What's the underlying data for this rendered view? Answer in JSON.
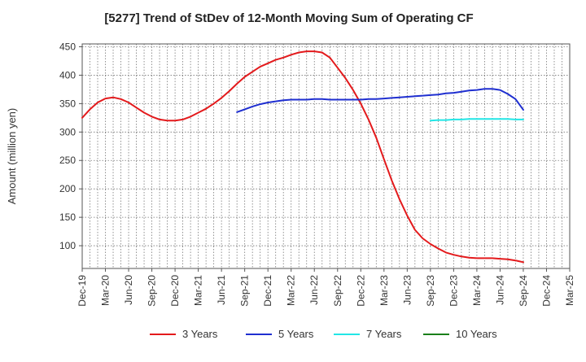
{
  "chart_data": {
    "type": "line",
    "title": "[5277]  Trend of StDev of 12-Month Moving Sum of Operating CF",
    "xlabel": "",
    "ylabel": "Amount (million yen)",
    "ylim": [
      60,
      455
    ],
    "yticks": [
      100,
      150,
      200,
      250,
      300,
      350,
      400,
      450
    ],
    "grid": true,
    "legend_position": "bottom",
    "x_ticks": [
      "Dec-19",
      "Mar-20",
      "Jun-20",
      "Sep-20",
      "Dec-20",
      "Mar-21",
      "Jun-21",
      "Sep-21",
      "Dec-21",
      "Mar-22",
      "Jun-22",
      "Sep-22",
      "Dec-22",
      "Mar-23",
      "Jun-23",
      "Sep-23",
      "Dec-23",
      "Mar-24",
      "Jun-24",
      "Sep-24",
      "Dec-24",
      "Mar-25"
    ],
    "series": [
      {
        "name": "3 Years",
        "color": "#e31a1c",
        "points": [
          [
            "Dec-19",
            325
          ],
          [
            "Jan-20",
            340
          ],
          [
            "Feb-20",
            352
          ],
          [
            "Mar-20",
            359
          ],
          [
            "Apr-20",
            361
          ],
          [
            "May-20",
            358
          ],
          [
            "Jun-20",
            352
          ],
          [
            "Jul-20",
            343
          ],
          [
            "Aug-20",
            334
          ],
          [
            "Sep-20",
            327
          ],
          [
            "Oct-20",
            322
          ],
          [
            "Nov-20",
            320
          ],
          [
            "Dec-20",
            320
          ],
          [
            "Jan-21",
            322
          ],
          [
            "Feb-21",
            327
          ],
          [
            "Mar-21",
            334
          ],
          [
            "Apr-21",
            341
          ],
          [
            "May-21",
            350
          ],
          [
            "Jun-21",
            360
          ],
          [
            "Jul-21",
            372
          ],
          [
            "Aug-21",
            385
          ],
          [
            "Sep-21",
            397
          ],
          [
            "Oct-21",
            406
          ],
          [
            "Nov-21",
            415
          ],
          [
            "Dec-21",
            421
          ],
          [
            "Jan-22",
            427
          ],
          [
            "Feb-22",
            431
          ],
          [
            "Mar-22",
            436
          ],
          [
            "Apr-22",
            440
          ],
          [
            "May-22",
            442
          ],
          [
            "Jun-22",
            442
          ],
          [
            "Jul-22",
            440
          ],
          [
            "Aug-22",
            431
          ],
          [
            "Sep-22",
            413
          ],
          [
            "Oct-22",
            395
          ],
          [
            "Nov-22",
            374
          ],
          [
            "Dec-22",
            350
          ],
          [
            "Jan-23",
            322
          ],
          [
            "Feb-23",
            290
          ],
          [
            "Mar-23",
            252
          ],
          [
            "Apr-23",
            215
          ],
          [
            "May-23",
            182
          ],
          [
            "Jun-23",
            153
          ],
          [
            "Jul-23",
            128
          ],
          [
            "Aug-23",
            113
          ],
          [
            "Sep-23",
            103
          ],
          [
            "Oct-23",
            95
          ],
          [
            "Nov-23",
            88
          ],
          [
            "Dec-23",
            84
          ],
          [
            "Jan-24",
            81
          ],
          [
            "Feb-24",
            79
          ],
          [
            "Mar-24",
            78
          ],
          [
            "Apr-24",
            78
          ],
          [
            "May-24",
            78
          ],
          [
            "Jun-24",
            77
          ],
          [
            "Jul-24",
            76
          ],
          [
            "Aug-24",
            74
          ],
          [
            "Sep-24",
            71
          ]
        ]
      },
      {
        "name": "5 Years",
        "color": "#1f2fd0",
        "points": [
          [
            "Aug-21",
            335
          ],
          [
            "Sep-21",
            340
          ],
          [
            "Oct-21",
            345
          ],
          [
            "Nov-21",
            349
          ],
          [
            "Dec-21",
            352
          ],
          [
            "Jan-22",
            354
          ],
          [
            "Feb-22",
            356
          ],
          [
            "Mar-22",
            357
          ],
          [
            "Apr-22",
            357
          ],
          [
            "May-22",
            357
          ],
          [
            "Jun-22",
            358
          ],
          [
            "Jul-22",
            358
          ],
          [
            "Aug-22",
            357
          ],
          [
            "Sep-22",
            357
          ],
          [
            "Oct-22",
            357
          ],
          [
            "Nov-22",
            357
          ],
          [
            "Dec-22",
            357
          ],
          [
            "Jan-23",
            358
          ],
          [
            "Feb-23",
            358
          ],
          [
            "Mar-23",
            359
          ],
          [
            "Apr-23",
            360
          ],
          [
            "May-23",
            361
          ],
          [
            "Jun-23",
            362
          ],
          [
            "Jul-23",
            363
          ],
          [
            "Aug-23",
            364
          ],
          [
            "Sep-23",
            365
          ],
          [
            "Oct-23",
            366
          ],
          [
            "Nov-23",
            368
          ],
          [
            "Dec-23",
            369
          ],
          [
            "Jan-24",
            371
          ],
          [
            "Feb-24",
            373
          ],
          [
            "Mar-24",
            374
          ],
          [
            "Apr-24",
            376
          ],
          [
            "May-24",
            376
          ],
          [
            "Jun-24",
            374
          ],
          [
            "Jul-24",
            367
          ],
          [
            "Aug-24",
            358
          ],
          [
            "Sep-24",
            339
          ]
        ]
      },
      {
        "name": "7 Years",
        "color": "#22e6e6",
        "points": [
          [
            "Sep-23",
            320
          ],
          [
            "Oct-23",
            321
          ],
          [
            "Nov-23",
            321
          ],
          [
            "Dec-23",
            322
          ],
          [
            "Jan-24",
            322
          ],
          [
            "Feb-24",
            323
          ],
          [
            "Mar-24",
            323
          ],
          [
            "Apr-24",
            323
          ],
          [
            "May-24",
            323
          ],
          [
            "Jun-24",
            323
          ],
          [
            "Jul-24",
            323
          ],
          [
            "Aug-24",
            322
          ],
          [
            "Sep-24",
            322
          ]
        ]
      },
      {
        "name": "10 Years",
        "color": "#1a7f1a",
        "points": []
      }
    ]
  }
}
